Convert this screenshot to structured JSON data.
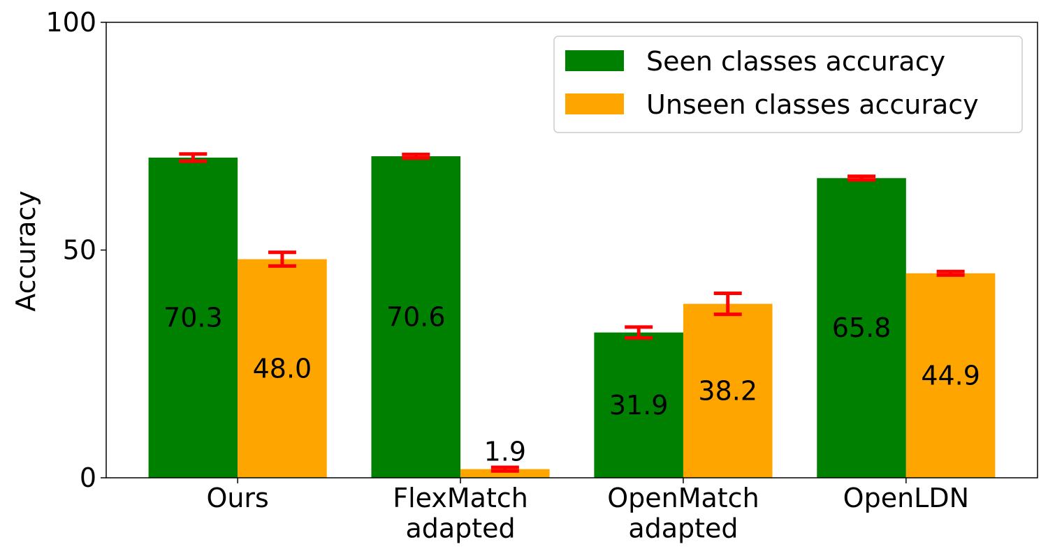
{
  "chart_data": {
    "type": "bar",
    "y_label": "Accuracy",
    "categories": [
      "Ours",
      "FlexMatch\nadapted",
      "OpenMatch\nadapted",
      "OpenLDN"
    ],
    "series": [
      {
        "name": "Seen classes accuracy",
        "color": "#008000",
        "values": [
          70.3,
          70.6,
          31.9,
          65.8
        ],
        "errors": [
          0.8,
          0.4,
          1.2,
          0.4
        ]
      },
      {
        "name": "Unseen classes accuracy",
        "color": "#ffa500",
        "values": [
          48.0,
          1.9,
          38.2,
          44.9
        ],
        "value_labels": [
          "48.0",
          "1.9",
          "38.2",
          "44.9"
        ],
        "errors": [
          1.5,
          0.4,
          2.3,
          0.4
        ]
      }
    ],
    "error_color": "#ff0000",
    "ylim": [
      0,
      100
    ],
    "yticks": [
      0,
      50,
      100
    ],
    "legend": "upper right"
  }
}
